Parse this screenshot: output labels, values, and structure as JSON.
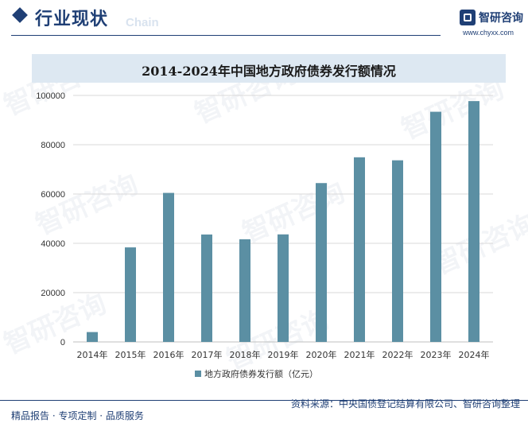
{
  "header": {
    "section_title": "行业现状",
    "section_title_bg": "Chain",
    "brand_name": "智研咨询",
    "brand_url": "www.chyxx.com"
  },
  "chart_data": {
    "type": "bar",
    "title": "2014-2024年中国地方政府债券发行额情况",
    "categories": [
      "2014年",
      "2015年",
      "2016年",
      "2017年",
      "2018年",
      "2019年",
      "2020年",
      "2021年",
      "2022年",
      "2023年",
      "2024年"
    ],
    "series": [
      {
        "name": "地方政府债券发行额（亿元）",
        "values": [
          4000,
          38350,
          60458,
          43581,
          41652,
          43624,
          64438,
          74898,
          73676,
          93371,
          97700
        ]
      }
    ],
    "ylim": [
      0,
      100000
    ],
    "yticks": [
      0,
      20000,
      40000,
      60000,
      80000,
      100000
    ],
    "xlabel": "",
    "ylabel": "",
    "grid": true,
    "legend": "bottom",
    "colors": {
      "bar": "#5b8fa3",
      "grid": "#d9d9d9",
      "axis": "#bfbfbf"
    }
  },
  "footer": {
    "source": "资料来源：中央国债登记结算有限公司、智研咨询整理",
    "slogan": "精品报告 · 专项定制 · 品质服务"
  },
  "watermark_text": "智研咨询"
}
